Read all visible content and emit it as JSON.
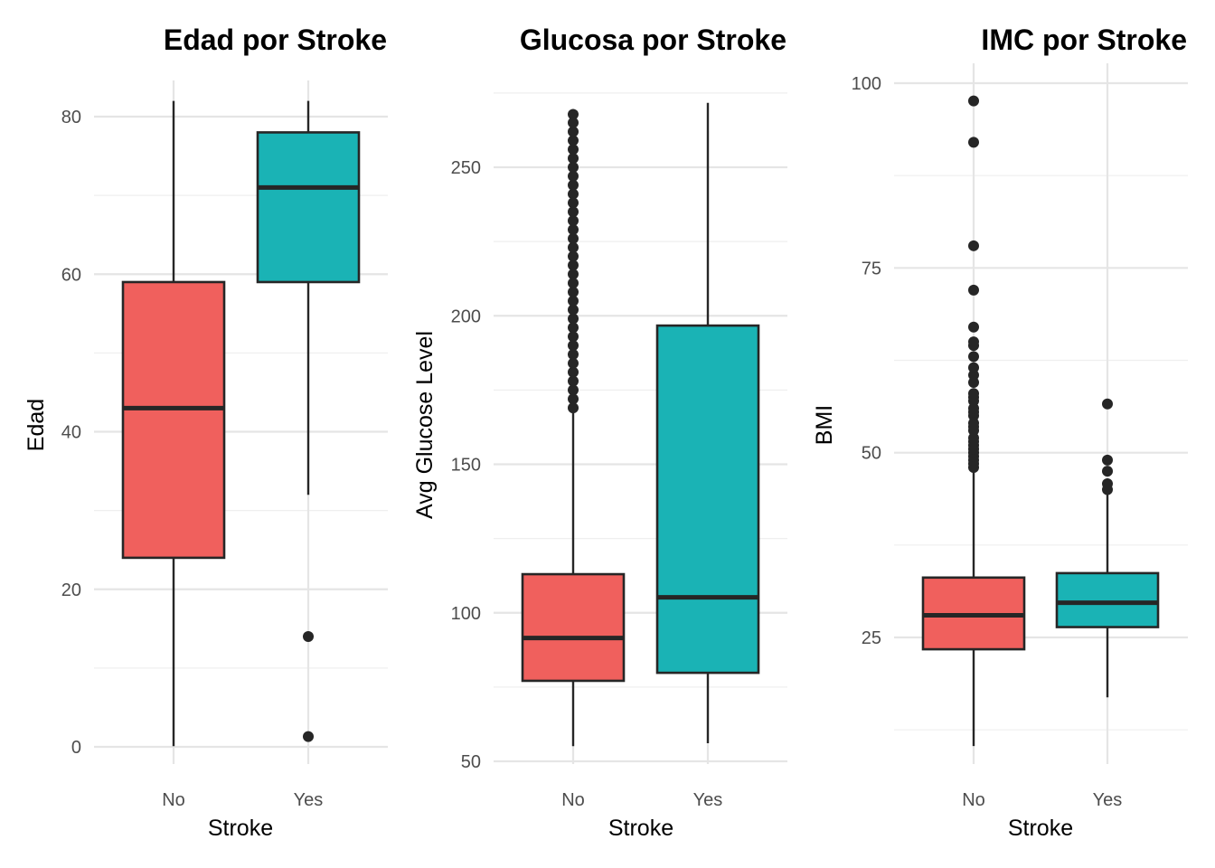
{
  "colors": {
    "No": "#F0605D",
    "Yes": "#1AB3B5"
  },
  "chart_data": [
    {
      "type": "box",
      "title": "Edad por Stroke",
      "xlabel": "Stroke",
      "ylabel": "Edad",
      "categories": [
        "No",
        "Yes"
      ],
      "ylim": [
        0,
        82
      ],
      "y_ticks": [
        0,
        20,
        40,
        60,
        80
      ],
      "grid": true,
      "boxes": [
        {
          "category": "No",
          "whisker_low": 0.08,
          "q1": 24,
          "median": 43,
          "q3": 59,
          "whisker_high": 82,
          "outliers": []
        },
        {
          "category": "Yes",
          "whisker_low": 32,
          "q1": 59,
          "median": 71,
          "q3": 78,
          "whisker_high": 82,
          "outliers": [
            1.3,
            14
          ]
        }
      ]
    },
    {
      "type": "box",
      "title": "Glucosa por Stroke",
      "xlabel": "Stroke",
      "ylabel": "Avg Glucose Level",
      "categories": [
        "No",
        "Yes"
      ],
      "ylim": [
        55,
        272
      ],
      "y_ticks": [
        50,
        100,
        150,
        200,
        250
      ],
      "grid": true,
      "boxes": [
        {
          "category": "No",
          "whisker_low": 55.1,
          "q1": 77.1,
          "median": 91.5,
          "q3": 113.0,
          "whisker_high": 168.5,
          "outliers": [
            169,
            172,
            175,
            178,
            181,
            184,
            187,
            190,
            193,
            196,
            199,
            202,
            205,
            208,
            211,
            214,
            217,
            220,
            223,
            226,
            229,
            232,
            235,
            238,
            241,
            244,
            247,
            250,
            253,
            256,
            259,
            262,
            265,
            267.8
          ]
        },
        {
          "category": "Yes",
          "whisker_low": 56.1,
          "q1": 79.8,
          "median": 105.2,
          "q3": 196.7,
          "whisker_high": 271.7,
          "outliers": []
        }
      ]
    },
    {
      "type": "box",
      "title": "IMC por Stroke",
      "xlabel": "Stroke",
      "ylabel": "BMI",
      "categories": [
        "No",
        "Yes"
      ],
      "ylim": [
        10.3,
        97.6
      ],
      "y_ticks": [
        25,
        50,
        75,
        100
      ],
      "grid": true,
      "boxes": [
        {
          "category": "No",
          "whisker_low": 10.3,
          "q1": 23.4,
          "median": 28.0,
          "q3": 33.1,
          "whisker_high": 47.5,
          "outliers": [
            48,
            48.5,
            49,
            49.5,
            50,
            50.5,
            51,
            51.5,
            52,
            53,
            53.5,
            54,
            55,
            55.5,
            56,
            57,
            57.5,
            58,
            59.5,
            60.5,
            61.5,
            63,
            64.5,
            65,
            67,
            72,
            78,
            92,
            97.6
          ]
        },
        {
          "category": "Yes",
          "whisker_low": 16.9,
          "q1": 26.4,
          "median": 29.7,
          "q3": 33.7,
          "whisker_high": 44.5,
          "outliers": [
            45,
            45.8,
            47.5,
            49,
            56.6
          ]
        }
      ]
    }
  ]
}
